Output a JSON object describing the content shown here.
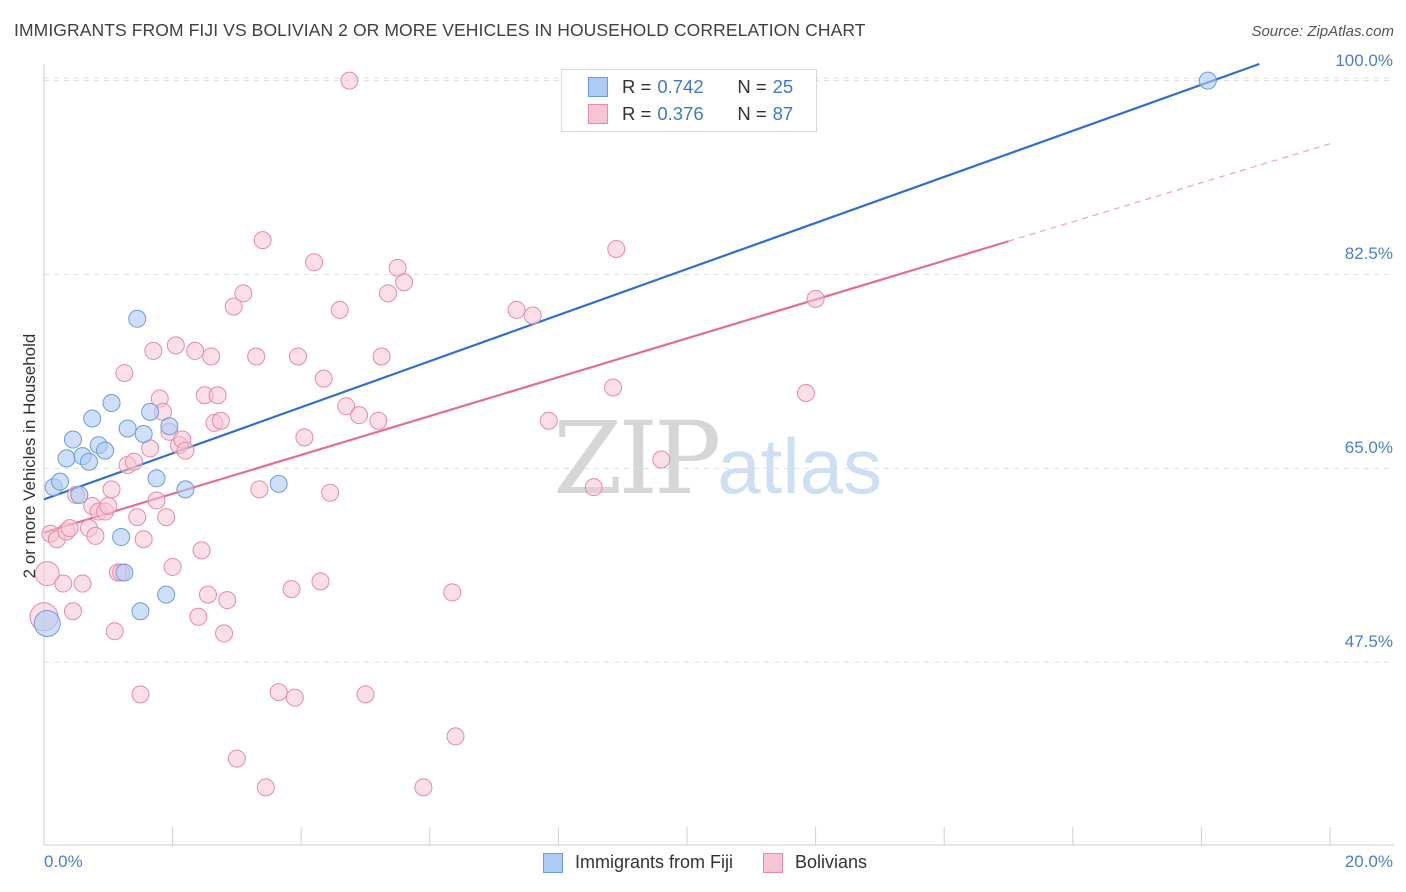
{
  "header": {
    "title": "IMMIGRANTS FROM FIJI VS BOLIVIAN 2 OR MORE VEHICLES IN HOUSEHOLD CORRELATION CHART",
    "source": "Source: ZipAtlas.com"
  },
  "watermark": {
    "zip": "ZIP",
    "atlas": "atlas"
  },
  "legend": {
    "rows": [
      {
        "r_key": "R =",
        "r_value": "0.742",
        "n_key": "N =",
        "n_value": "25",
        "color": "#aecbf5",
        "border": "#6d9be0"
      },
      {
        "r_key": "R =",
        "r_value": "0.376",
        "n_key": "N =",
        "n_value": "87",
        "color": "#f8c4d4",
        "border": "#e88aa8"
      }
    ]
  },
  "bottom_legend": {
    "fiji": "Immigrants from Fiji",
    "bolivians": "Bolivians"
  },
  "chart_data": {
    "type": "scatter",
    "title": "IMMIGRANTS FROM FIJI VS BOLIVIAN 2 OR MORE VEHICLES IN HOUSEHOLD CORRELATION CHART",
    "xlabel": "",
    "ylabel": "2 or more Vehicles in Household",
    "xlim": [
      0,
      20
    ],
    "ylim": [
      31.0,
      101.5
    ],
    "x_tick_labels": [
      "0.0%",
      "20.0%"
    ],
    "y_ticks": [
      47.5,
      65.0,
      82.5,
      100.0
    ],
    "y_tick_labels": [
      "47.5%",
      "65.0%",
      "82.5%",
      "100.0%"
    ],
    "grid": true,
    "legend_position": "top-center",
    "series": [
      {
        "name": "Immigrants from Fiji",
        "color": "#6d9be0",
        "fill": "#aecbf5",
        "r": "0.742",
        "n": "25",
        "trend": {
          "x": [
            0,
            18.9
          ],
          "y": [
            62.2,
            101.5
          ],
          "color": "#2f6fd0"
        },
        "points": [
          [
            0.15,
            63.3
          ],
          [
            0.25,
            63.8
          ],
          [
            0.35,
            65.9
          ],
          [
            0.45,
            67.6
          ],
          [
            0.55,
            62.6
          ],
          [
            0.6,
            66.1
          ],
          [
            0.7,
            65.6
          ],
          [
            0.75,
            69.5
          ],
          [
            0.85,
            67.1
          ],
          [
            0.95,
            66.6
          ],
          [
            1.05,
            70.9
          ],
          [
            1.2,
            58.8
          ],
          [
            1.25,
            55.6
          ],
          [
            1.3,
            68.6
          ],
          [
            1.45,
            78.5
          ],
          [
            1.5,
            52.1
          ],
          [
            1.55,
            68.1
          ],
          [
            1.65,
            70.1
          ],
          [
            1.75,
            64.1
          ],
          [
            1.9,
            53.6
          ],
          [
            1.95,
            68.8
          ],
          [
            2.2,
            63.1
          ],
          [
            3.65,
            63.6
          ],
          [
            0.05,
            51.0
          ],
          [
            18.1,
            100.0
          ]
        ]
      },
      {
        "name": "Bolivians",
        "color": "#e88aa8",
        "fill": "#f8c4d4",
        "r": "0.376",
        "n": "87",
        "trend": {
          "x": [
            0,
            15.0
          ],
          "y": [
            59.2,
            85.5
          ],
          "color": "#e56d95"
        },
        "trend_dashed": {
          "x": [
            15.0,
            20.0
          ],
          "y": [
            85.5,
            94.3
          ]
        },
        "points": [
          [
            0.05,
            55.5
          ],
          [
            0.1,
            59.1
          ],
          [
            0.2,
            58.6
          ],
          [
            0.3,
            54.6
          ],
          [
            0.35,
            59.3
          ],
          [
            0.4,
            59.6
          ],
          [
            0.45,
            52.1
          ],
          [
            0.5,
            62.6
          ],
          [
            0.6,
            54.6
          ],
          [
            0.7,
            59.6
          ],
          [
            0.75,
            61.6
          ],
          [
            0.8,
            58.9
          ],
          [
            0.85,
            61.1
          ],
          [
            0.95,
            61.1
          ],
          [
            1.0,
            61.6
          ],
          [
            1.05,
            63.1
          ],
          [
            1.1,
            50.3
          ],
          [
            1.15,
            55.6
          ],
          [
            1.2,
            55.6
          ],
          [
            1.25,
            73.6
          ],
          [
            1.3,
            65.3
          ],
          [
            1.4,
            65.6
          ],
          [
            1.45,
            60.6
          ],
          [
            1.5,
            44.6
          ],
          [
            1.55,
            58.6
          ],
          [
            1.65,
            66.8
          ],
          [
            1.7,
            75.6
          ],
          [
            1.75,
            62.1
          ],
          [
            1.8,
            71.3
          ],
          [
            1.85,
            70.1
          ],
          [
            1.9,
            60.6
          ],
          [
            1.95,
            68.3
          ],
          [
            2.0,
            56.1
          ],
          [
            2.05,
            76.1
          ],
          [
            2.1,
            67.1
          ],
          [
            2.15,
            67.6
          ],
          [
            2.2,
            66.6
          ],
          [
            2.35,
            75.6
          ],
          [
            2.4,
            51.6
          ],
          [
            2.45,
            57.6
          ],
          [
            2.5,
            71.6
          ],
          [
            2.55,
            53.6
          ],
          [
            2.6,
            75.1
          ],
          [
            2.65,
            69.1
          ],
          [
            2.7,
            71.6
          ],
          [
            2.75,
            69.3
          ],
          [
            2.8,
            50.1
          ],
          [
            2.85,
            53.1
          ],
          [
            2.95,
            79.6
          ],
          [
            3.0,
            38.8
          ],
          [
            3.1,
            80.8
          ],
          [
            3.3,
            75.1
          ],
          [
            3.35,
            63.1
          ],
          [
            3.4,
            85.6
          ],
          [
            3.45,
            36.2
          ],
          [
            3.65,
            44.8
          ],
          [
            3.85,
            54.1
          ],
          [
            3.9,
            44.3
          ],
          [
            3.95,
            75.1
          ],
          [
            4.05,
            67.8
          ],
          [
            4.2,
            83.6
          ],
          [
            4.3,
            54.8
          ],
          [
            4.35,
            73.1
          ],
          [
            4.45,
            62.8
          ],
          [
            4.6,
            79.3
          ],
          [
            4.7,
            70.6
          ],
          [
            4.75,
            100.0
          ],
          [
            4.9,
            69.8
          ],
          [
            5.0,
            44.6
          ],
          [
            5.2,
            69.3
          ],
          [
            5.25,
            75.1
          ],
          [
            5.35,
            80.8
          ],
          [
            5.5,
            83.1
          ],
          [
            5.6,
            81.8
          ],
          [
            5.9,
            36.2
          ],
          [
            6.35,
            53.8
          ],
          [
            6.4,
            40.8
          ],
          [
            7.35,
            79.3
          ],
          [
            7.6,
            78.8
          ],
          [
            7.85,
            69.3
          ],
          [
            8.55,
            63.3
          ],
          [
            8.85,
            72.3
          ],
          [
            8.9,
            84.8
          ],
          [
            9.6,
            65.8
          ],
          [
            11.85,
            71.8
          ],
          [
            12.0,
            80.3
          ],
          [
            0.0,
            51.6
          ]
        ]
      }
    ]
  }
}
